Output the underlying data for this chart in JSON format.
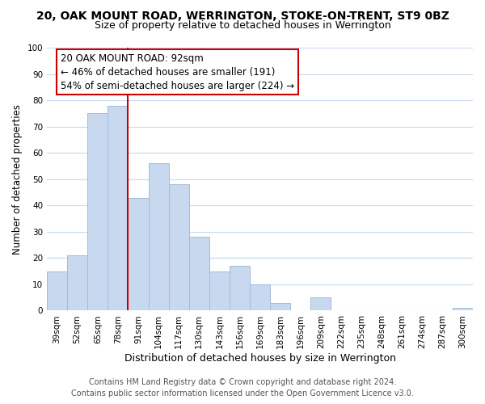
{
  "title": "20, OAK MOUNT ROAD, WERRINGTON, STOKE-ON-TRENT, ST9 0BZ",
  "subtitle": "Size of property relative to detached houses in Werrington",
  "xlabel": "Distribution of detached houses by size in Werrington",
  "ylabel": "Number of detached properties",
  "categories": [
    "39sqm",
    "52sqm",
    "65sqm",
    "78sqm",
    "91sqm",
    "104sqm",
    "117sqm",
    "130sqm",
    "143sqm",
    "156sqm",
    "169sqm",
    "183sqm",
    "196sqm",
    "209sqm",
    "222sqm",
    "235sqm",
    "248sqm",
    "261sqm",
    "274sqm",
    "287sqm",
    "300sqm"
  ],
  "values": [
    15,
    21,
    75,
    78,
    43,
    56,
    48,
    28,
    15,
    17,
    10,
    3,
    0,
    5,
    0,
    0,
    0,
    0,
    0,
    0,
    1
  ],
  "bar_color": "#c8d9ef",
  "bar_edge_color": "#a0bcd8",
  "vline_position": 3.5,
  "vline_color": "#cc0000",
  "annotation_text_line1": "20 OAK MOUNT ROAD: 92sqm",
  "annotation_text_line2": "← 46% of detached houses are smaller (191)",
  "annotation_text_line3": "54% of semi-detached houses are larger (224) →",
  "annotation_box_color": "#ffffff",
  "annotation_box_edge_color": "#cc0000",
  "ylim": [
    0,
    100
  ],
  "yticks": [
    0,
    10,
    20,
    30,
    40,
    50,
    60,
    70,
    80,
    90,
    100
  ],
  "footer_line1": "Contains HM Land Registry data © Crown copyright and database right 2024.",
  "footer_line2": "Contains public sector information licensed under the Open Government Licence v3.0.",
  "background_color": "#ffffff",
  "grid_color": "#c8d9ef",
  "title_fontsize": 10,
  "subtitle_fontsize": 9,
  "xlabel_fontsize": 9,
  "ylabel_fontsize": 8.5,
  "tick_fontsize": 7.5,
  "annotation_fontsize": 8.5,
  "footer_fontsize": 7
}
